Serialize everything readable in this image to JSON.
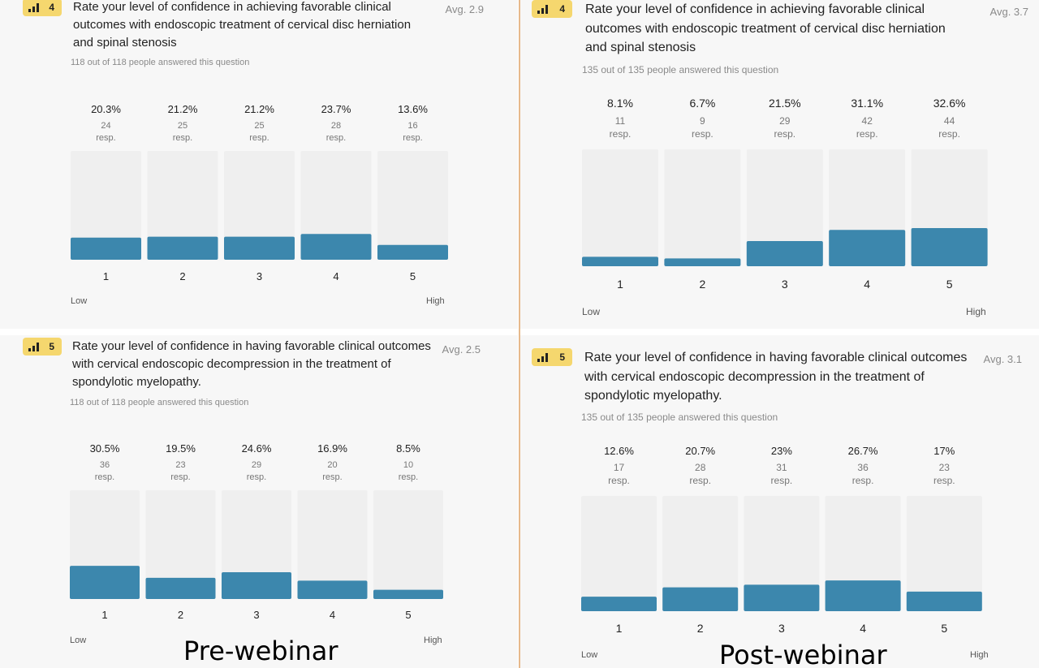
{
  "captions": {
    "pre": "Pre-webinar",
    "post": "Post-webinar"
  },
  "colors": {
    "bar_fill": "#3c87ad",
    "track": "#efefef",
    "badge": "#f5d76e"
  },
  "chart_data": [
    {
      "type": "bar",
      "panel": "pre-webinar-question-4",
      "badge": "4",
      "question": "Rate your level of confidence in achieving favorable clinical outcomes with endoscopic treatment of cervical disc herniation and spinal stenosis",
      "avg": "Avg. 2.9",
      "answered": "118 out of 118 people answered this question",
      "categories": [
        "1",
        "2",
        "3",
        "4",
        "5"
      ],
      "percent_labels": [
        "20.3%",
        "21.2%",
        "21.2%",
        "23.7%",
        "13.6%"
      ],
      "values": [
        20.3,
        21.2,
        21.2,
        23.7,
        13.6
      ],
      "responses": [
        "24",
        "25",
        "25",
        "28",
        "16"
      ],
      "resp_unit": "resp.",
      "low_label": "Low",
      "high_label": "High",
      "ylim": [
        0,
        100
      ]
    },
    {
      "type": "bar",
      "panel": "post-webinar-question-4",
      "badge": "4",
      "question": "Rate your level of confidence in achieving favorable clinical outcomes with endoscopic treatment of cervical disc herniation and spinal stenosis",
      "avg": "Avg. 3.7",
      "answered": "135 out of 135 people answered this question",
      "categories": [
        "1",
        "2",
        "3",
        "4",
        "5"
      ],
      "percent_labels": [
        "8.1%",
        "6.7%",
        "21.5%",
        "31.1%",
        "32.6%"
      ],
      "values": [
        8.1,
        6.7,
        21.5,
        31.1,
        32.6
      ],
      "responses": [
        "11",
        "9",
        "29",
        "42",
        "44"
      ],
      "resp_unit": "resp.",
      "low_label": "Low",
      "high_label": "High",
      "ylim": [
        0,
        100
      ]
    },
    {
      "type": "bar",
      "panel": "pre-webinar-question-5",
      "badge": "5",
      "question": "Rate your level of confidence in having favorable clinical outcomes with cervical endoscopic decompression in the treatment of spondylotic myelopathy.",
      "avg": "Avg. 2.5",
      "answered": "118 out of 118 people answered this question",
      "categories": [
        "1",
        "2",
        "3",
        "4",
        "5"
      ],
      "percent_labels": [
        "30.5%",
        "19.5%",
        "24.6%",
        "16.9%",
        "8.5%"
      ],
      "values": [
        30.5,
        19.5,
        24.6,
        16.9,
        8.5
      ],
      "responses": [
        "36",
        "23",
        "29",
        "20",
        "10"
      ],
      "resp_unit": "resp.",
      "low_label": "Low",
      "high_label": "High",
      "ylim": [
        0,
        100
      ]
    },
    {
      "type": "bar",
      "panel": "post-webinar-question-5",
      "badge": "5",
      "question": "Rate your level of confidence in having favorable clinical outcomes with cervical endoscopic decompression in the treatment of spondylotic myelopathy.",
      "avg": "Avg. 3.1",
      "answered": "135 out of 135 people answered this question",
      "categories": [
        "1",
        "2",
        "3",
        "4",
        "5"
      ],
      "percent_labels": [
        "12.6%",
        "20.7%",
        "23%",
        "26.7%",
        "17%"
      ],
      "values": [
        12.6,
        20.7,
        23,
        26.7,
        17
      ],
      "responses": [
        "17",
        "28",
        "31",
        "36",
        "23"
      ],
      "resp_unit": "resp.",
      "low_label": "Low",
      "high_label": "High",
      "ylim": [
        0,
        100
      ]
    }
  ]
}
